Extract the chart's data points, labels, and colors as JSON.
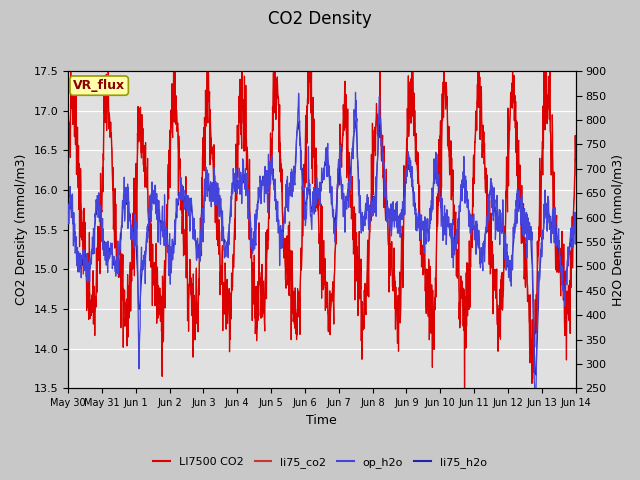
{
  "title": "CO2 Density",
  "xlabel": "Time",
  "ylabel_left": "CO2 Density (mmol/m3)",
  "ylabel_right": "H2O Density (mmol/m3)",
  "ylim_left": [
    13.5,
    17.5
  ],
  "ylim_right": [
    250,
    900
  ],
  "yticks_left": [
    13.5,
    14.0,
    14.5,
    15.0,
    15.5,
    16.0,
    16.5,
    17.0,
    17.5
  ],
  "yticks_right": [
    250,
    300,
    350,
    400,
    450,
    500,
    550,
    600,
    650,
    700,
    750,
    800,
    850,
    900
  ],
  "annotation_text": "VR_flux",
  "fig_facecolor": "#c8c8c8",
  "plot_bg_color": "#e0e0e0",
  "li7500_co2_color": "#dd0000",
  "li75_co2_color": "#cc3333",
  "op_h2o_color": "#4444dd",
  "li75_h2o_color": "#2222aa",
  "legend_labels": [
    "LI7500 CO2",
    "li75_co2",
    "op_h2o",
    "li75_h2o"
  ],
  "x_tick_labels": [
    "May 30",
    "May 31",
    "Jun 1",
    "Jun 2",
    "Jun 3",
    "Jun 4",
    "Jun 5",
    "Jun 6",
    "Jun 7",
    "Jun 8",
    "Jun 9",
    "Jun 10",
    "Jun 11",
    "Jun 12",
    "Jun 13",
    "Jun 14"
  ],
  "num_days": 15,
  "seed": 7
}
